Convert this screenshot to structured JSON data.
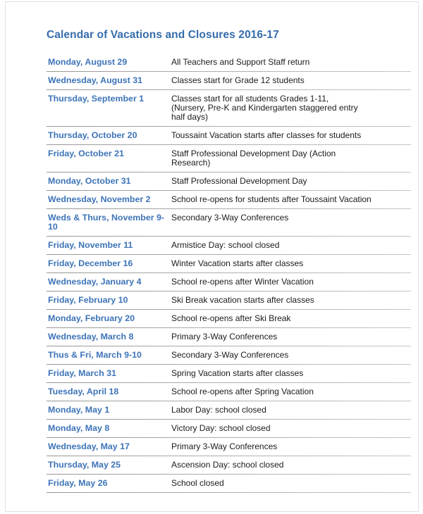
{
  "header": {
    "title": "Calendar of Vacations and Closures 2016-17"
  },
  "colors": {
    "title_blue": "#356cab",
    "date_blue": "#3d74b8",
    "body_text": "#1b1b1b",
    "separator_gray": "#a6a6a6",
    "page_edge": "#e0e0e0"
  },
  "rows": [
    {
      "date": "Monday, August 29",
      "description": "All Teachers and Support Staff return"
    },
    {
      "date": "Wednesday, August 31",
      "description": "Classes start for Grade 12 students"
    },
    {
      "date": "Thursday, September 1",
      "description": "Classes start for all students Grades 1-11,\n(Nursery, Pre-K and Kindergarten staggered entry\nhalf days)"
    },
    {
      "date": "Thursday, October 20",
      "description": "Toussaint Vacation starts after classes for students"
    },
    {
      "date": "Friday, October 21",
      "description": "Staff Professional Development Day (Action\nResearch)"
    },
    {
      "date": "Monday, October 31",
      "description": "Staff Professional Development Day"
    },
    {
      "date": "Wednesday, November 2",
      "description": "School re-opens for students after Toussaint Vacation"
    },
    {
      "date": "Weds & Thurs, November 9-10",
      "description": "Secondary 3-Way Conferences"
    },
    {
      "date": "Friday, November 11",
      "description": "Armistice Day: school closed"
    },
    {
      "date": "Friday, December 16",
      "description": "Winter Vacation starts after classes"
    },
    {
      "date": "Wednesday, January 4",
      "description": "School re-opens after Winter Vacation"
    },
    {
      "date": "Friday, February 10",
      "description": "Ski Break vacation starts after classes"
    },
    {
      "date": "Monday, February 20",
      "description": "School re-opens after Ski Break"
    },
    {
      "date": "Wednesday, March 8",
      "description": "Primary 3-Way Conferences"
    },
    {
      "date": "Thus & Fri, March 9-10",
      "description": "Secondary 3-Way Conferences"
    },
    {
      "date": "Friday, March 31",
      "description": "Spring Vacation starts after classes"
    },
    {
      "date": "Tuesday, April 18",
      "description": "School re-opens after Spring Vacation"
    },
    {
      "date": "Monday, May 1",
      "description": "Labor Day: school closed"
    },
    {
      "date": "Monday, May 8",
      "description": "Victory Day: school closed"
    },
    {
      "date": "Wednesday, May 17",
      "description": "Primary 3-Way Conferences"
    },
    {
      "date": "Thursday, May 25",
      "description": "Ascension Day: school closed"
    },
    {
      "date": "Friday, May 26",
      "description": "School closed"
    }
  ]
}
